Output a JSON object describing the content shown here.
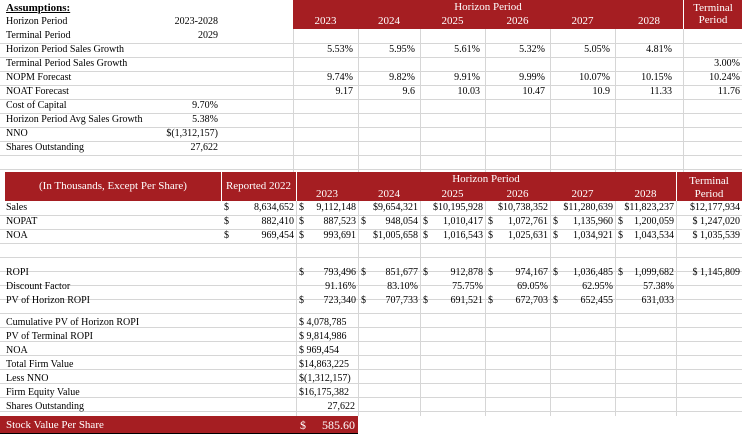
{
  "assumptions": {
    "title": "Assumptions:",
    "rows": [
      {
        "label": "Horizon Period",
        "value": "2023-2028",
        "growth": [],
        "terminal": ""
      },
      {
        "label": "Terminal Period",
        "value": "2029",
        "growth": [],
        "terminal": ""
      },
      {
        "label": "Horizon Period Sales Growth",
        "value": "",
        "growth": [
          "5.53%",
          "5.95%",
          "5.61%",
          "5.32%",
          "5.05%",
          "4.81%"
        ],
        "terminal": ""
      },
      {
        "label": "Terminal Period Sales Growth",
        "value": "",
        "growth": [],
        "terminal": "3.00%"
      },
      {
        "label": "NOPM Forecast",
        "value": "",
        "growth": [
          "9.74%",
          "9.82%",
          "9.91%",
          "9.99%",
          "10.07%",
          "10.15%"
        ],
        "terminal": "10.24%"
      },
      {
        "label": "NOAT Forecast",
        "value": "",
        "growth": [
          "9.17",
          "9.6",
          "10.03",
          "10.47",
          "10.9",
          "11.33"
        ],
        "terminal": "11.76"
      },
      {
        "label": "Cost of Capital",
        "value": "9.70%",
        "growth": [],
        "terminal": ""
      },
      {
        "label": "Horizon Period Avg Sales Growth",
        "value": "5.38%",
        "growth": [],
        "terminal": ""
      },
      {
        "label": "NNO",
        "value": "$(1,312,157)",
        "growth": [],
        "terminal": ""
      },
      {
        "label": "Shares Outstanding",
        "value": "27,622",
        "growth": [],
        "terminal": ""
      }
    ]
  },
  "header": {
    "horizon": "Horizon Period",
    "terminal_line1": "Terminal",
    "terminal_line2": "Period",
    "years": [
      "2023",
      "2024",
      "2025",
      "2026",
      "2027",
      "2028"
    ],
    "units_label": "(In Thousands, Except Per Share)",
    "reported_label": "Reported 2022"
  },
  "main": {
    "rows": [
      {
        "label": "Sales",
        "rep_sym": "$",
        "reported": "8,634,652",
        "syms": [
          "$",
          "",
          "",
          "",
          "",
          ""
        ],
        "values": [
          "9,112,148",
          "$9,654,321",
          "$10,195,928",
          "$10,738,352",
          "$11,280,639",
          "$11,823,237"
        ],
        "terminal": "$12,177,934"
      },
      {
        "label": "NOPAT",
        "rep_sym": "$",
        "reported": "882,410",
        "syms": [
          "$",
          "$",
          "$",
          "$",
          "$",
          "$"
        ],
        "values": [
          "887,523",
          "948,054",
          "1,010,417",
          "1,072,761",
          "1,135,960",
          "1,200,059"
        ],
        "terminal": "$ 1,247,020"
      },
      {
        "label": "NOA",
        "rep_sym": "$",
        "reported": "969,454",
        "syms": [
          "$",
          "",
          "$",
          "$",
          "$",
          "$"
        ],
        "values": [
          "993,691",
          "$1,005,658",
          "1,016,543",
          "1,025,631",
          "1,034,921",
          "1,043,534"
        ],
        "terminal": "$ 1,035,539"
      },
      {
        "label": "",
        "rep_sym": "",
        "reported": "",
        "syms": [
          "",
          "",
          "",
          "",
          "",
          ""
        ],
        "values": [
          "",
          "",
          "",
          "",
          "",
          ""
        ],
        "terminal": ""
      },
      {
        "label": "ROPI",
        "rep_sym": "",
        "reported": "",
        "syms": [
          "$",
          "$",
          "$",
          "$",
          "$",
          "$"
        ],
        "values": [
          "793,496",
          "851,677",
          "912,878",
          "974,167",
          "1,036,485",
          "1,099,682"
        ],
        "terminal": "$ 1,145,809"
      },
      {
        "label": "Discount Factor",
        "rep_sym": "",
        "reported": "",
        "syms": [
          "",
          "",
          "",
          "",
          "",
          ""
        ],
        "values": [
          "91.16%",
          "83.10%",
          "75.75%",
          "69.05%",
          "62.95%",
          "57.38%"
        ],
        "terminal": ""
      },
      {
        "label": "PV of Horizon ROPI",
        "rep_sym": "",
        "reported": "",
        "syms": [
          "$",
          "$",
          "$",
          "$",
          "$",
          ""
        ],
        "values": [
          "723,340",
          "707,733",
          "691,521",
          "672,703",
          "652,455",
          "631,033"
        ],
        "terminal": ""
      }
    ]
  },
  "summary": {
    "rows": [
      {
        "label": "Cumulative PV of Horizon ROPI",
        "value": "$ 4,078,785"
      },
      {
        "label": "PV of Terminal ROPI",
        "value": "$ 9,814,986"
      },
      {
        "label": "NOA",
        "value": "$   969,454"
      },
      {
        "label": "Total Firm Value",
        "value": "$14,863,225"
      },
      {
        "label": "Less NNO",
        "value": "$(1,312,157)"
      },
      {
        "label": "Firm Equity Value",
        "value": "$16,175,382"
      },
      {
        "label": "Shares Outstanding",
        "value": "27,622"
      }
    ],
    "stock_label": "Stock Value Per Share",
    "stock_sym": "$",
    "stock_value": "585.60"
  },
  "colors": {
    "header_bg": "#a51e22",
    "header_text": "#ffffff",
    "grid": "#d6d6d6"
  }
}
